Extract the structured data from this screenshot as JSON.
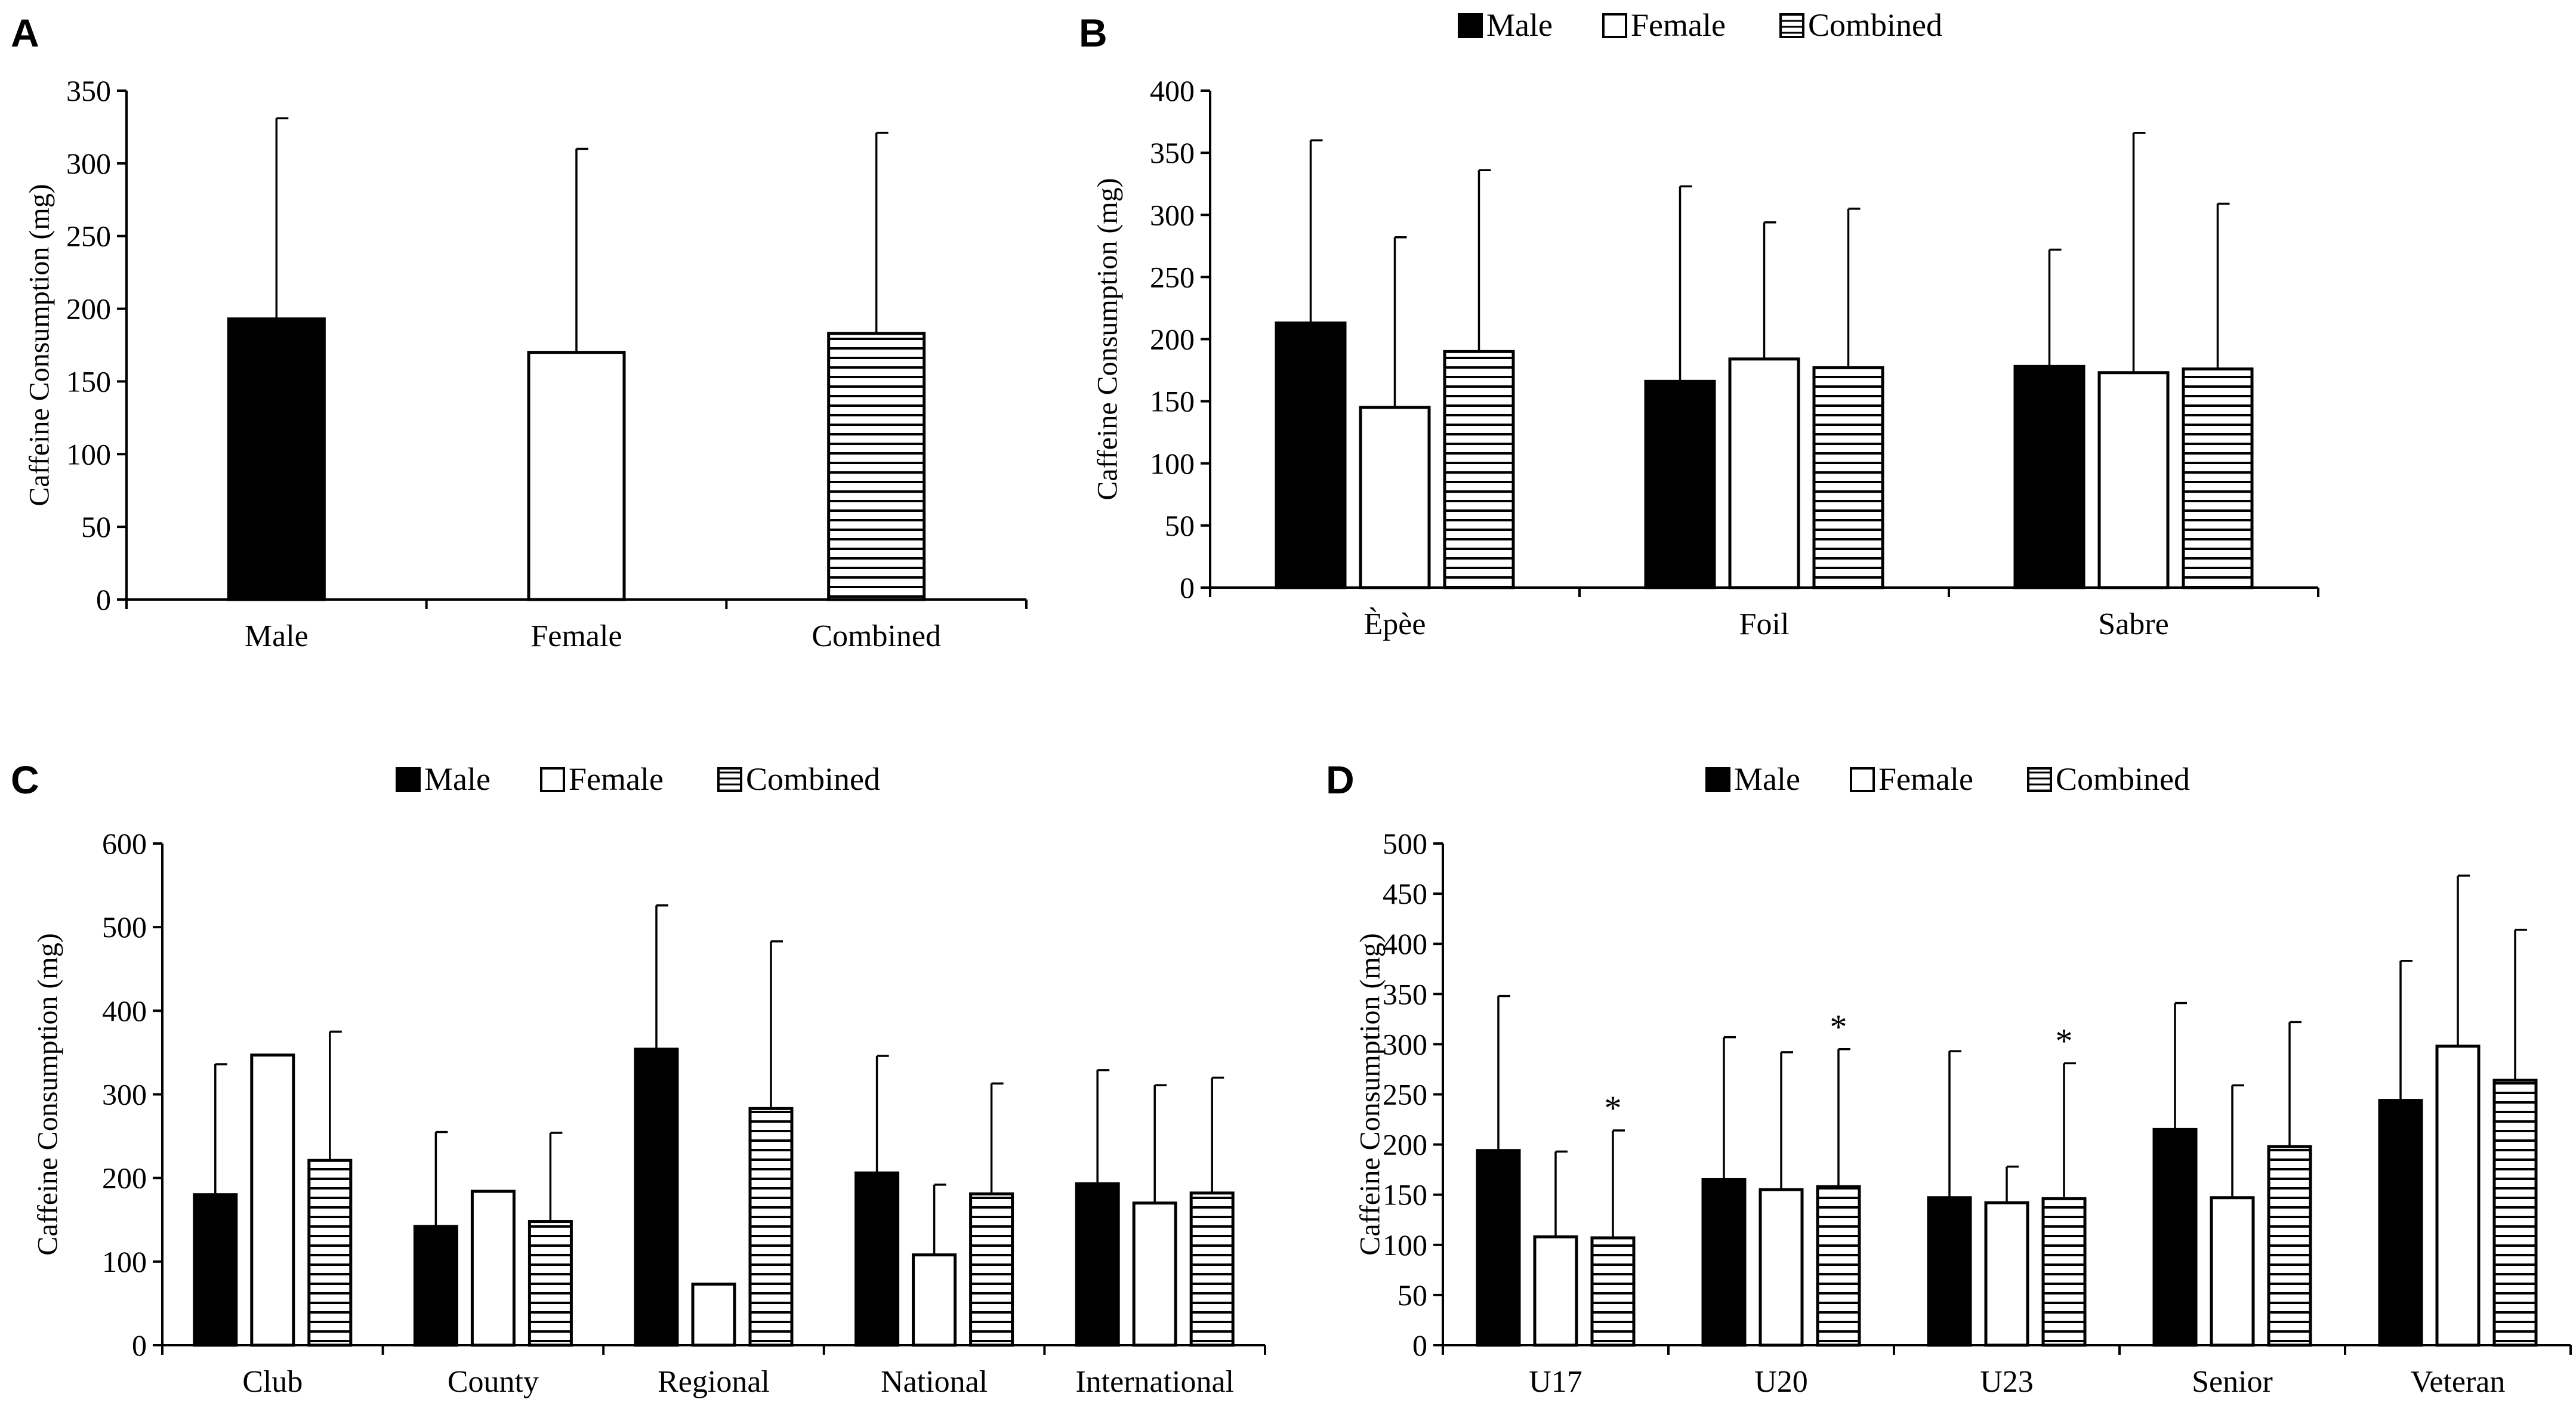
{
  "figure": {
    "colors": {
      "male": "#000000",
      "female": "#ffffff",
      "combined_line": "#000000",
      "axis": "#000000"
    }
  },
  "chart_data": [
    {
      "panel": "A",
      "type": "bar",
      "title": "",
      "xlabel": "",
      "ylabel": "Caffeine Consumption (mg)",
      "ylim": [
        0,
        350
      ],
      "ytick_step": 50,
      "yticks": [
        "0",
        "50",
        "100",
        "150",
        "200",
        "250",
        "300",
        "350"
      ],
      "categories": [
        "Male",
        "Female",
        "Combined"
      ],
      "legend": null,
      "series": [
        {
          "name": "Male",
          "style": "solid",
          "values": [
            193,
            null,
            null
          ],
          "errors": [
            138,
            null,
            null
          ]
        },
        {
          "name": "Female",
          "style": "open",
          "values": [
            null,
            170,
            null
          ],
          "errors": [
            null,
            140,
            null
          ]
        },
        {
          "name": "Combined",
          "style": "hatched",
          "values": [
            null,
            null,
            183
          ],
          "errors": [
            null,
            null,
            138
          ]
        }
      ],
      "single_bar_per_category": true
    },
    {
      "panel": "B",
      "type": "bar",
      "title": "",
      "xlabel": "",
      "ylabel": "Caffeine Consumption (mg)",
      "ylim": [
        0,
        400
      ],
      "ytick_step": 50,
      "yticks": [
        "0",
        "50",
        "100",
        "150",
        "200",
        "250",
        "300",
        "350",
        "400"
      ],
      "categories": [
        "Èpèe",
        "Foil",
        "Sabre"
      ],
      "legend": [
        "Male",
        "Female",
        "Combined"
      ],
      "series": [
        {
          "name": "Male",
          "style": "solid",
          "values": [
            213,
            166,
            178
          ],
          "errors": [
            147,
            157,
            94
          ]
        },
        {
          "name": "Female",
          "style": "open",
          "values": [
            145,
            184,
            173
          ],
          "errors": [
            137,
            110,
            193
          ]
        },
        {
          "name": "Combined",
          "style": "hatched",
          "values": [
            190,
            177,
            176
          ],
          "errors": [
            146,
            128,
            133
          ]
        }
      ]
    },
    {
      "panel": "C",
      "type": "bar",
      "title": "",
      "xlabel": "",
      "ylabel": "Caffeine Consumption (mg)",
      "ylim": [
        0,
        600
      ],
      "ytick_step": 100,
      "yticks": [
        "0",
        "100",
        "200",
        "300",
        "400",
        "500",
        "600"
      ],
      "categories": [
        "Club",
        "County",
        "Regional",
        "National",
        "International"
      ],
      "legend": [
        "Male",
        "Female",
        "Combined"
      ],
      "series": [
        {
          "name": "Male",
          "style": "solid",
          "values": [
            180,
            142,
            354,
            206,
            193
          ],
          "errors": [
            156,
            113,
            172,
            140,
            136
          ]
        },
        {
          "name": "Female",
          "style": "open",
          "values": [
            347,
            184,
            73,
            108,
            170
          ],
          "errors": [
            null,
            null,
            null,
            84,
            141
          ]
        },
        {
          "name": "Combined",
          "style": "hatched",
          "values": [
            221,
            148,
            283,
            181,
            182
          ],
          "errors": [
            154,
            106,
            200,
            132,
            138
          ]
        }
      ]
    },
    {
      "panel": "D",
      "type": "bar",
      "title": "",
      "xlabel": "",
      "ylabel": "Caffeine Consumption (mg)",
      "ylim": [
        0,
        500
      ],
      "ytick_step": 50,
      "yticks": [
        "0",
        "50",
        "100",
        "150",
        "200",
        "250",
        "300",
        "350",
        "400",
        "450",
        "500"
      ],
      "categories": [
        "U17",
        "U20",
        "U23",
        "Senior",
        "Veteran"
      ],
      "legend": [
        "Male",
        "Female",
        "Combined"
      ],
      "series": [
        {
          "name": "Male",
          "style": "solid",
          "values": [
            194,
            165,
            147,
            215,
            244
          ],
          "errors": [
            154,
            142,
            146,
            126,
            139
          ]
        },
        {
          "name": "Female",
          "style": "open",
          "values": [
            108,
            155,
            142,
            147,
            298
          ],
          "errors": [
            85,
            137,
            36,
            112,
            170
          ]
        },
        {
          "name": "Combined",
          "style": "hatched",
          "values": [
            107,
            158,
            146,
            198,
            264
          ],
          "errors": [
            107,
            137,
            135,
            124,
            150
          ]
        }
      ],
      "annotations": [
        {
          "category": "U17",
          "series": "Combined",
          "text": "*"
        },
        {
          "category": "U20",
          "series": "Combined",
          "text": "*"
        },
        {
          "category": "U23",
          "series": "Combined",
          "text": "*"
        }
      ]
    }
  ]
}
